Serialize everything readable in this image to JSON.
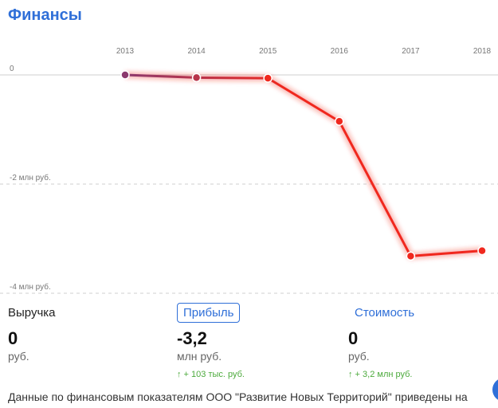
{
  "section_title": "Финансы",
  "chart_data": {
    "type": "line",
    "x": [
      "2013",
      "2014",
      "2015",
      "2016",
      "2017",
      "2018"
    ],
    "series": [
      {
        "values": [
          0,
          -0.05,
          -0.06,
          -0.85,
          -3.32,
          -3.22
        ]
      }
    ],
    "y_ticks": [
      {
        "value": 0,
        "label": "0"
      },
      {
        "value": -2,
        "label": "-2 млн руб."
      },
      {
        "value": -4,
        "label": "-4 млн руб."
      }
    ],
    "ylim": [
      -4,
      0
    ],
    "grid": true,
    "colors": {
      "start": "#8b3a6e",
      "end": "#f0281e"
    }
  },
  "metrics": [
    {
      "label": "Выручка",
      "value": "0",
      "unit": "руб.",
      "change": ""
    },
    {
      "label": "Прибыль",
      "value": "-3,2",
      "unit": "млн руб.",
      "change": "↑ + 103 тыс. руб."
    },
    {
      "label": "Стоимость",
      "value": "0",
      "unit": "руб.",
      "change": "↑ + 3,2 млн руб."
    }
  ],
  "footer_text": "Данные по финансовым показателям ООО \"Развитие Новых Территорий\" приведены на"
}
